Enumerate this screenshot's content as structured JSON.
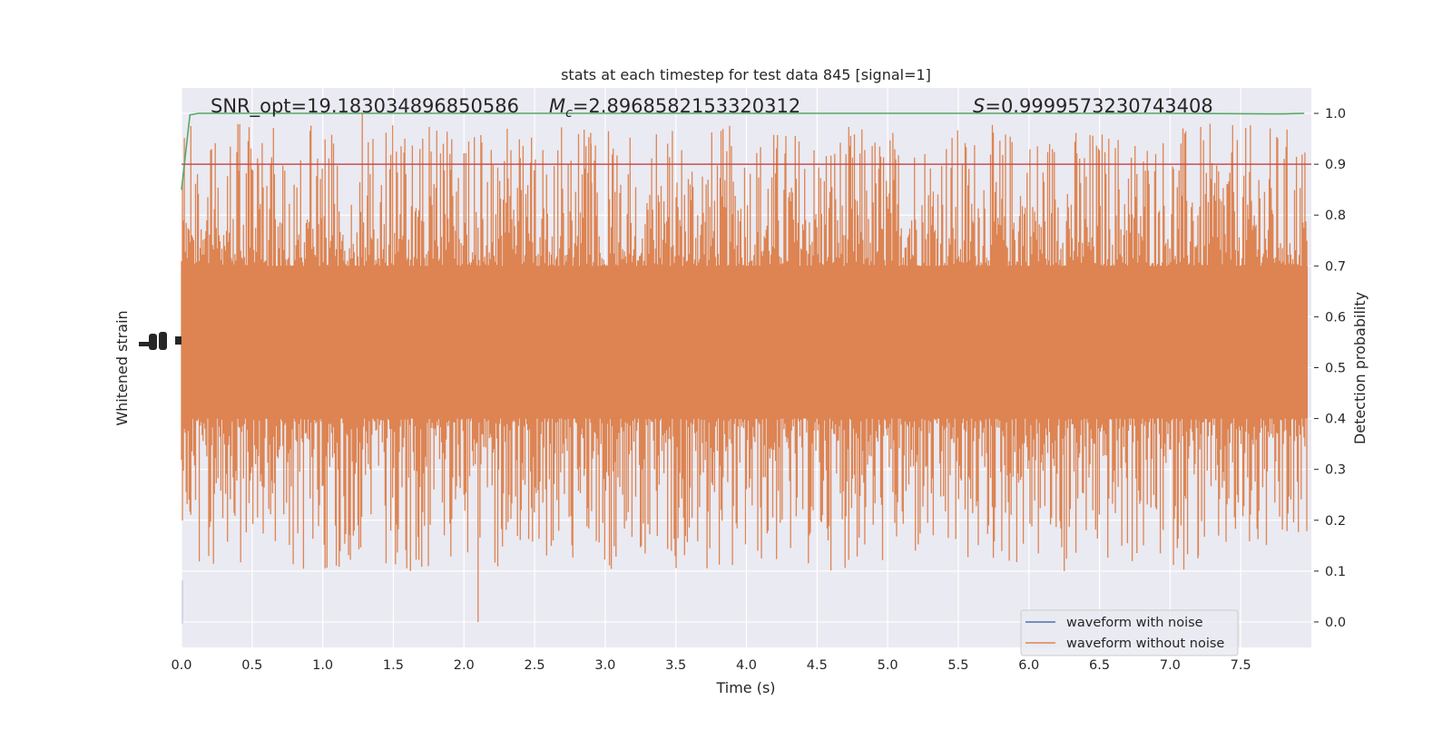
{
  "chart_data": {
    "type": "line",
    "title": "stats at each timestep for test data 845 [signal=1]",
    "xlabel": "Time (s)",
    "ylabel_left": "Whitened strain",
    "ylabel_right": "Detection probability",
    "xlim": [
      0,
      8
    ],
    "ylim_right": [
      -0.05,
      1.05
    ],
    "grid": true,
    "x_ticks": [
      "0.0",
      "0.5",
      "1.0",
      "1.5",
      "2.0",
      "2.5",
      "3.0",
      "3.5",
      "4.0",
      "4.5",
      "5.0",
      "5.5",
      "6.0",
      "6.5",
      "7.0",
      "7.5"
    ],
    "y_right_ticks": [
      "0.0",
      "0.1",
      "0.2",
      "0.3",
      "0.4",
      "0.5",
      "0.6",
      "0.7",
      "0.8",
      "0.9",
      "1.0"
    ],
    "annotations": {
      "snr": "SNR_opt=19.183034896850586",
      "mc_symbol": "M",
      "mc_subscript": "c",
      "mc_value": "=2.8968582153320312",
      "s_symbol": "S",
      "s_value": "=0.9999573230743408"
    },
    "threshold": {
      "value": 0.9,
      "color": "#c44e52"
    },
    "series": [
      {
        "name": "waveform with noise",
        "color": "#4c72b0"
      },
      {
        "name": "waveform without noise",
        "color": "#dd8452",
        "band_core": [
          0.4,
          0.7
        ],
        "peak_max": 1.0,
        "trough_min": 0.0
      },
      {
        "color": "#55a868",
        "x": [
          0,
          0.06,
          0.12,
          0.5,
          1.0,
          2.0,
          3.0,
          4.0,
          5.0,
          6.0,
          7.0,
          7.8,
          7.95
        ],
        "values": [
          0.85,
          0.997,
          1.0,
          1.0,
          1.0,
          1.0,
          1.0,
          1.0,
          1.0,
          1.0,
          1.0,
          0.999,
          1.0
        ]
      }
    ],
    "legend": {
      "placement": "lower-right",
      "entries": [
        "waveform with noise",
        "waveform without noise"
      ]
    }
  }
}
